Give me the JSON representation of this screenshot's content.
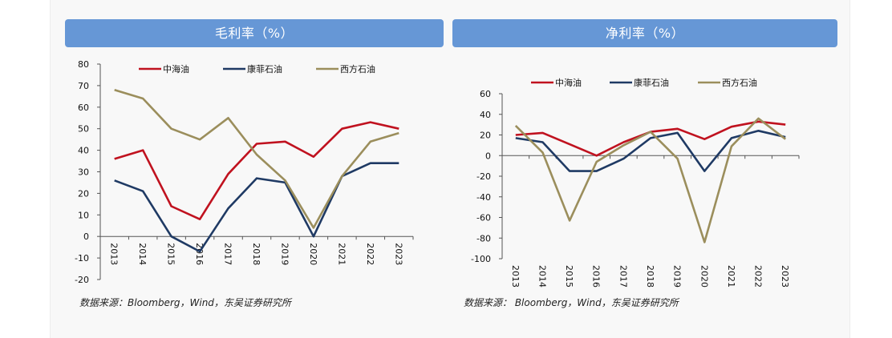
{
  "colors": {
    "title_bar": "#6697d6",
    "panel_bg": "#f8f8f8",
    "series": {
      "中海油": "#c0121f",
      "康菲石油": "#1f3a64",
      "西方石油": "#9b8e5c"
    }
  },
  "chart_data": [
    {
      "type": "line",
      "title": "毛利率（%）",
      "xlabel": "",
      "ylabel": "",
      "categories": [
        "2013",
        "2014",
        "2015",
        "2016",
        "2017",
        "2018",
        "2019",
        "2020",
        "2021",
        "2022",
        "2023"
      ],
      "ylim": [
        -20,
        80
      ],
      "yticks": [
        "80",
        "70",
        "60",
        "50",
        "40",
        "30",
        "20",
        "10",
        "0",
        "-10",
        "-20"
      ],
      "grid": false,
      "legend_position": "top",
      "series": [
        {
          "name": "中海油",
          "color": "#c0121f",
          "values": [
            36,
            40,
            14,
            8,
            29,
            43,
            44,
            37,
            50,
            53,
            50
          ]
        },
        {
          "name": "康菲石油",
          "color": "#1f3a64",
          "values": [
            26,
            21,
            0,
            -7,
            13,
            27,
            25,
            0,
            28,
            34,
            34
          ]
        },
        {
          "name": "西方石油",
          "color": "#9b8e5c",
          "values": [
            68,
            64,
            50,
            45,
            55,
            38,
            26,
            4,
            28,
            44,
            48
          ]
        }
      ],
      "source": "数据来源：Bloomberg，Wind，东吴证券研究所"
    },
    {
      "type": "line",
      "title": "净利率（%）",
      "xlabel": "",
      "ylabel": "",
      "categories": [
        "2013",
        "2014",
        "2015",
        "2016",
        "2017",
        "2018",
        "2019",
        "2020",
        "2021",
        "2022",
        "2023"
      ],
      "ylim": [
        -100,
        60
      ],
      "yticks": [
        "60",
        "40",
        "20",
        "0",
        "-20",
        "-40",
        "-60",
        "-80",
        "-100"
      ],
      "grid": false,
      "legend_position": "top",
      "series": [
        {
          "name": "中海油",
          "color": "#c0121f",
          "values": [
            20,
            22,
            11,
            0,
            13,
            23,
            26,
            16,
            28,
            33,
            30
          ]
        },
        {
          "name": "康菲石油",
          "color": "#1f3a64",
          "values": [
            17,
            13,
            -15,
            -15,
            -3,
            17,
            22,
            -15,
            17,
            24,
            18
          ]
        },
        {
          "name": "西方石油",
          "color": "#9b8e5c",
          "values": [
            29,
            3,
            -63,
            -6,
            10,
            23,
            -3,
            -84,
            9,
            36,
            16
          ]
        }
      ],
      "source": "数据来源：  Bloomberg，Wind，东吴证券研究所"
    }
  ]
}
